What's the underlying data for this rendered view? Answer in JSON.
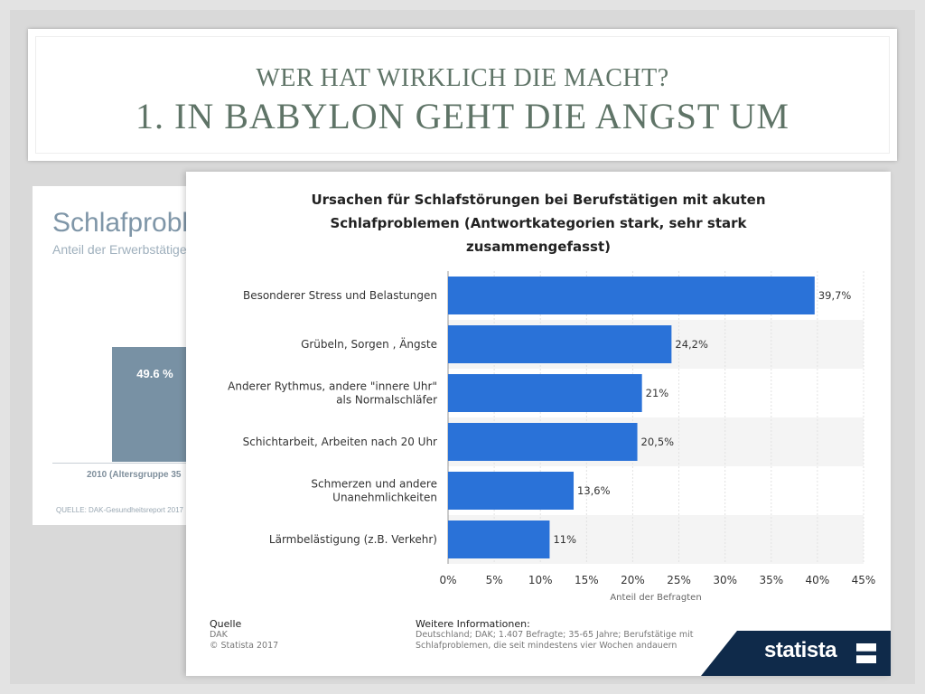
{
  "slide": {
    "title_line1": "WER HAT WIRKLICH DIE MACHT?",
    "title_line2": "1. IN BABYLON GEHT DIE ANGST UM"
  },
  "background_image": {
    "title": "Schlafproblen",
    "subtitle": "Anteil der Erwerbstätigen i",
    "bar_value": "49.6 %",
    "category": "2010 (Altersgruppe 35",
    "source": "QUELLE: DAK-Gesundheitsreport 2017"
  },
  "chart_data": {
    "type": "bar",
    "orientation": "horizontal",
    "title": "Ursachen für Schlafstörungen bei Berufstätigen mit akuten\nSchlafproblemen (Antwortkategorien stark, sehr stark\nzusammengefasst)",
    "categories": [
      "Besonderer Stress und Belastungen",
      "Grübeln, Sorgen , Ängste",
      "Anderer Rythmus, andere \"innere Uhr\"\nals Normalschläfer",
      "Schichtarbeit, Arbeiten nach 20 Uhr",
      "Schmerzen und andere\nUnanehmlichkeiten",
      "Lärmbelästigung (z.B. Verkehr)"
    ],
    "values": [
      39.7,
      24.2,
      21,
      20.5,
      13.6,
      11
    ],
    "value_labels": [
      "39,7%",
      "24,2%",
      "21%",
      "20,5%",
      "13,6%",
      "11%"
    ],
    "xlim": [
      0,
      45
    ],
    "xticks": [
      "0%",
      "5%",
      "10%",
      "15%",
      "20%",
      "25%",
      "30%",
      "35%",
      "40%",
      "45%"
    ],
    "xlabel": "Anteil der Befragten",
    "ylabel": "",
    "grid": true,
    "bar_color": "#2a72d8"
  },
  "footer": {
    "source_heading": "Quelle",
    "source_line1": "DAK",
    "source_line2": "© Statista 2017",
    "info_heading": "Weitere Informationen:",
    "info_text": "Deutschland; DAK; 1.407 Befragte; 35-65 Jahre; Berufstätige mit Schlafproblemen, die seit mindestens vier Wochen andauern",
    "brand": "statista"
  }
}
